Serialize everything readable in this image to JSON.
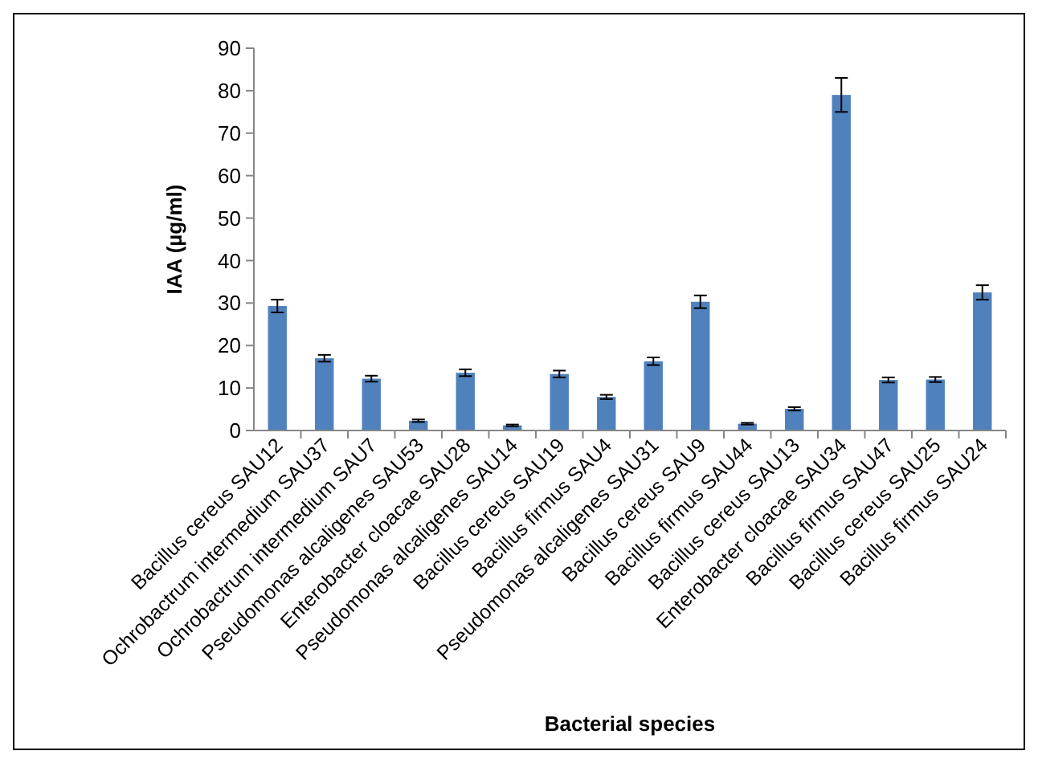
{
  "chart_data": {
    "type": "bar",
    "xlabel": "Bacterial species",
    "ylabel": "IAA (µg/ml)",
    "categories": [
      "Bacillus cereus SAU12",
      "Ochrobactrum intermedium SAU37",
      "Ochrobactrum intermedium SAU7",
      "Pseudomonas alcaligenes SAU53",
      "Enterobacter cloacae SAU28",
      "Pseudomonas alcaligenes SAU14",
      "Bacillus cereus SAU19",
      "Bacillus firmus SAU4",
      "Pseudomonas alcaligenes SAU31",
      "Bacillus cereus SAU9",
      "Bacillus firmus SAU44",
      "Bacillus cereus SAU13",
      "Enterobacter cloacae SAU34",
      "Bacillus firmus SAU47",
      "Bacillus cereus SAU25",
      "Bacillus firmus SAU24"
    ],
    "values": [
      29.3,
      17,
      12.2,
      2.3,
      13.6,
      1.2,
      13.3,
      7.9,
      16.3,
      30.3,
      1.6,
      5.1,
      79,
      11.9,
      12,
      32.5
    ],
    "errors": [
      1.5,
      0.8,
      0.7,
      0.3,
      0.8,
      0.2,
      0.8,
      0.5,
      0.9,
      1.5,
      0.2,
      0.4,
      4,
      0.6,
      0.6,
      1.7
    ],
    "color": "#4f81bd",
    "ylim": [
      0,
      90
    ],
    "yticks": [
      0,
      10,
      20,
      30,
      40,
      50,
      60,
      70,
      80,
      90
    ]
  }
}
